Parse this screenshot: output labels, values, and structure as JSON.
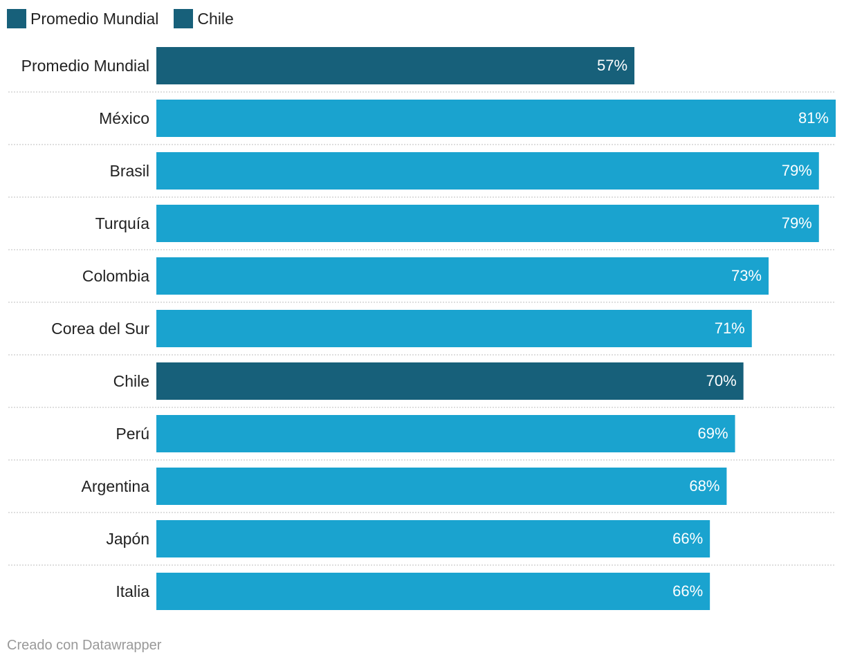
{
  "legend": [
    {
      "label": "Promedio Mundial",
      "color": "#17607a"
    },
    {
      "label": "Chile",
      "color": "#17607a"
    }
  ],
  "colors": {
    "highlight": "#17607a",
    "default": "#1aa3cf",
    "separator": "#bdbdbd"
  },
  "chart_data": {
    "type": "bar",
    "orientation": "horizontal",
    "categories": [
      "Promedio Mundial",
      "México",
      "Brasil",
      "Turquía",
      "Colombia",
      "Corea del Sur",
      "Chile",
      "Perú",
      "Argentina",
      "Japón",
      "Italia"
    ],
    "values": [
      57,
      81,
      79,
      79,
      73,
      71,
      70,
      69,
      68,
      66,
      66
    ],
    "value_labels": [
      "57%",
      "81%",
      "79%",
      "79%",
      "73%",
      "71%",
      "70%",
      "69%",
      "68%",
      "66%",
      "66%"
    ],
    "highlighted": [
      "Promedio Mundial",
      "Chile"
    ],
    "unit": "%",
    "xlim": [
      0,
      81
    ],
    "grid": false,
    "legend_position": "top-left"
  },
  "footer": "Creado con Datawrapper"
}
